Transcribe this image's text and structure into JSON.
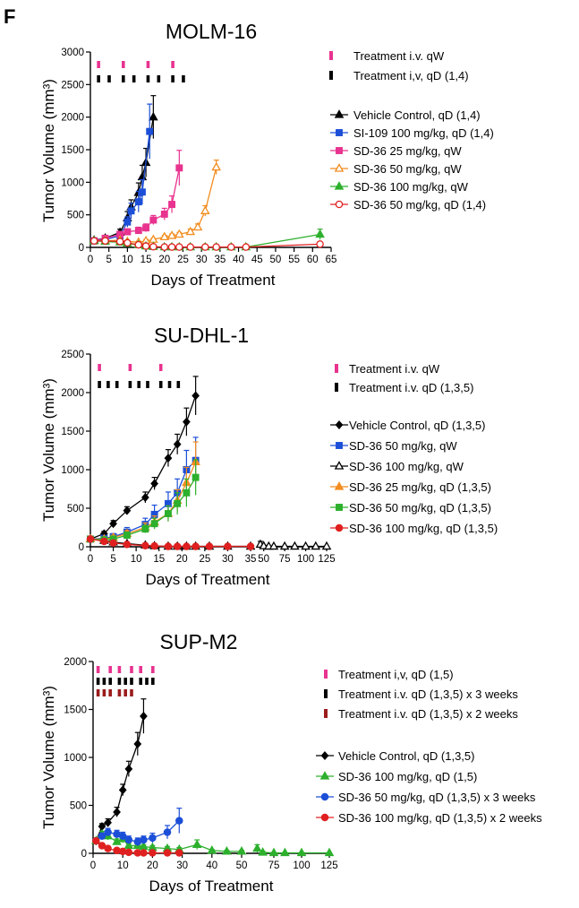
{
  "panel_letter": "F",
  "chart_data": [
    {
      "type": "line",
      "title": "MOLM-16",
      "xlabel": "Days of Treatment",
      "ylabel": "Tumor Volume (mm³)",
      "xlim": [
        0,
        65
      ],
      "ylim": [
        0,
        3000
      ],
      "x_ticks": [
        "0",
        "5",
        "10",
        "15",
        "20",
        "25",
        "30",
        "35",
        "40",
        "45",
        "50",
        "55",
        "60",
        "65"
      ],
      "y_ticks": [
        "0",
        "500",
        "1000",
        "1500",
        "2000",
        "2500",
        "3000"
      ],
      "treatments": [
        {
          "label": "Treatment i.v. qW",
          "color": "#e8338f",
          "days": [
            1,
            8,
            15,
            22
          ]
        },
        {
          "label": "Treatment i,v, qD (1,4)",
          "color": "#000000",
          "days": [
            1,
            4,
            8,
            11,
            15,
            18,
            22,
            25
          ]
        }
      ],
      "series": [
        {
          "name": "Vehicle Control, qD (1,4)",
          "color": "#000000",
          "marker": "triangle",
          "fill": "filled",
          "x": [
            1,
            4,
            8,
            10,
            11,
            13,
            14,
            15,
            17
          ],
          "y": [
            110,
            140,
            230,
            450,
            620,
            840,
            1080,
            1300,
            2000
          ],
          "err": [
            20,
            30,
            50,
            100,
            110,
            150,
            180,
            220,
            330
          ]
        },
        {
          "name": "SI-109 100 mg/kg, qD (1,4)",
          "color": "#1c4fd8",
          "marker": "square",
          "fill": "filled",
          "x": [
            1,
            4,
            8,
            10,
            11,
            13,
            14,
            16
          ],
          "y": [
            100,
            120,
            180,
            390,
            560,
            700,
            850,
            1780
          ],
          "err": [
            20,
            30,
            40,
            80,
            120,
            160,
            190,
            420
          ]
        },
        {
          "name": "SD-36 25 mg/kg, qW",
          "color": "#e8338f",
          "marker": "square",
          "fill": "filled",
          "x": [
            1,
            4,
            8,
            10,
            13,
            15,
            17,
            20,
            22,
            24
          ],
          "y": [
            100,
            140,
            200,
            240,
            260,
            300,
            420,
            510,
            660,
            1220
          ],
          "err": [
            20,
            20,
            30,
            40,
            50,
            60,
            70,
            90,
            130,
            270
          ]
        },
        {
          "name": "SD-36 50 mg/kg, qW",
          "color": "#f28c1f",
          "marker": "triangle",
          "fill": "open",
          "x": [
            1,
            4,
            8,
            10,
            13,
            15,
            17,
            20,
            22,
            24,
            27,
            29,
            31,
            34
          ],
          "y": [
            100,
            100,
            110,
            90,
            80,
            100,
            120,
            160,
            180,
            200,
            240,
            310,
            560,
            1230
          ],
          "err": [
            15,
            15,
            15,
            15,
            15,
            20,
            20,
            25,
            25,
            30,
            40,
            50,
            80,
            110
          ]
        },
        {
          "name": "SD-36 100 mg/kg, qW",
          "color": "#2db02d",
          "marker": "triangle",
          "fill": "filled",
          "x": [
            1,
            4,
            8,
            10,
            13,
            15,
            17,
            20,
            22,
            24,
            27,
            31,
            34,
            38,
            42,
            62
          ],
          "y": [
            100,
            90,
            80,
            60,
            40,
            20,
            10,
            5,
            5,
            5,
            5,
            5,
            5,
            5,
            5,
            200
          ],
          "err": [
            15,
            15,
            15,
            10,
            10,
            5,
            5,
            0,
            0,
            0,
            0,
            0,
            0,
            0,
            0,
            80
          ]
        },
        {
          "name": "SD-36 50 mg/kg, qD (1,4)",
          "color": "#e02020",
          "marker": "circle",
          "fill": "open",
          "x": [
            1,
            4,
            8,
            10,
            13,
            15,
            17,
            20,
            22,
            24,
            27,
            31,
            34,
            38,
            42,
            62
          ],
          "y": [
            100,
            100,
            90,
            70,
            40,
            20,
            10,
            5,
            5,
            5,
            5,
            5,
            5,
            5,
            5,
            50
          ],
          "err": [
            15,
            15,
            15,
            10,
            10,
            5,
            5,
            0,
            0,
            0,
            0,
            0,
            0,
            0,
            0,
            10
          ]
        }
      ]
    },
    {
      "type": "line",
      "title": "SU-DHL-1",
      "xlabel": "Days of Treatment",
      "ylabel": "Tumor Volume (mm³)",
      "xlim": [
        0,
        125
      ],
      "axis_break": [
        35,
        45
      ],
      "ylim": [
        0,
        2500
      ],
      "x_ticks": [
        "0",
        "5",
        "10",
        "15",
        "20",
        "25",
        "30",
        "35",
        "50",
        "75",
        "100",
        "125"
      ],
      "y_ticks": [
        "0",
        "500",
        "1000",
        "1500",
        "2000",
        "2500"
      ],
      "treatments": [
        {
          "label": "Treatment i.v. qW",
          "color": "#e8338f",
          "days": [
            1,
            8,
            15
          ]
        },
        {
          "label": "Treatment i.v. qD (1,3,5)",
          "color": "#000000",
          "days": [
            1,
            3,
            5,
            8,
            10,
            12,
            15,
            17,
            19
          ]
        }
      ],
      "series": [
        {
          "name": "Vehicle Control, qD (1,3,5)",
          "color": "#000000",
          "marker": "diamond",
          "fill": "filled",
          "x": [
            0,
            3,
            5,
            8,
            12,
            14,
            17,
            19,
            21,
            23
          ],
          "y": [
            100,
            170,
            300,
            470,
            640,
            820,
            1150,
            1330,
            1620,
            1960
          ],
          "err": [
            20,
            30,
            40,
            50,
            70,
            80,
            110,
            130,
            180,
            250
          ]
        },
        {
          "name": "SD-36 50 mg/kg, qW",
          "color": "#1c4fd8",
          "marker": "square",
          "fill": "filled",
          "x": [
            0,
            3,
            5,
            8,
            12,
            14,
            17,
            19,
            21,
            23
          ],
          "y": [
            100,
            110,
            130,
            190,
            290,
            420,
            560,
            700,
            1000,
            1120
          ],
          "err": [
            20,
            30,
            40,
            60,
            80,
            120,
            150,
            180,
            250,
            300
          ]
        },
        {
          "name": "SD-36 100 mg/kg, qW",
          "color": "#000000",
          "marker": "triangle",
          "fill": "open",
          "x": [
            0,
            3,
            5,
            8,
            12,
            14,
            17,
            19,
            21,
            23,
            26,
            30,
            35,
            46,
            50,
            56,
            62,
            75,
            87,
            100,
            112,
            125
          ],
          "y": [
            100,
            80,
            60,
            40,
            20,
            10,
            5,
            5,
            5,
            5,
            5,
            5,
            5,
            30,
            10,
            5,
            5,
            5,
            5,
            5,
            5,
            5
          ],
          "err": [
            15,
            15,
            10,
            10,
            5,
            5,
            0,
            0,
            0,
            0,
            0,
            0,
            0,
            40,
            10,
            0,
            0,
            0,
            0,
            0,
            0,
            0
          ]
        },
        {
          "name": "SD-36 25 mg/kg, qD (1,3,5)",
          "color": "#f28c1f",
          "marker": "triangle",
          "fill": "filled",
          "x": [
            0,
            3,
            5,
            8,
            12,
            14,
            17,
            19,
            21,
            23
          ],
          "y": [
            100,
            100,
            120,
            170,
            250,
            320,
            430,
            600,
            830,
            1100
          ],
          "err": [
            20,
            20,
            30,
            40,
            60,
            80,
            100,
            140,
            200,
            260
          ]
        },
        {
          "name": "SD-36 50 mg/kg, qD (1,3,5)",
          "color": "#2db02d",
          "marker": "square",
          "fill": "filled",
          "x": [
            0,
            3,
            5,
            8,
            12,
            14,
            17,
            19,
            21,
            23
          ],
          "y": [
            100,
            90,
            100,
            150,
            230,
            300,
            430,
            560,
            700,
            900
          ],
          "err": [
            20,
            20,
            30,
            40,
            50,
            70,
            100,
            140,
            180,
            230
          ]
        },
        {
          "name": "SD-36 100 mg/kg, qD (1,3,5)",
          "color": "#e02020",
          "marker": "circle",
          "fill": "filled",
          "x": [
            0,
            3,
            5,
            8,
            12,
            14,
            17,
            19,
            21,
            23,
            26,
            30,
            35
          ],
          "y": [
            100,
            70,
            50,
            30,
            15,
            10,
            5,
            5,
            5,
            5,
            5,
            5,
            5
          ],
          "err": [
            15,
            10,
            10,
            5,
            5,
            0,
            0,
            0,
            0,
            0,
            0,
            0,
            0
          ]
        }
      ]
    },
    {
      "type": "line",
      "title": "SUP-M2",
      "xlabel": "Days of Treatment",
      "ylabel": "Tumor Volume (mm³)",
      "xlim": [
        0,
        125
      ],
      "axis_break": [
        50,
        50
      ],
      "ylim": [
        0,
        2000
      ],
      "x_ticks": [
        "0",
        "10",
        "20",
        "30",
        "40",
        "50",
        "75",
        "100",
        "125"
      ],
      "y_ticks": [
        "0",
        "500",
        "1000",
        "1500",
        "2000"
      ],
      "treatments": [
        {
          "label": "Treatment i,v, qD (1,5)",
          "color": "#e8338f",
          "days": [
            1,
            5,
            8,
            12,
            15,
            19
          ]
        },
        {
          "label": "Treatment i.v. qD (1,3,5) x 3 weeks",
          "color": "#000000",
          "days": [
            1,
            3,
            5,
            8,
            10,
            12,
            15,
            17,
            19
          ]
        },
        {
          "label": "Treatment i.v. qD (1,3,5) x 2 weeks",
          "color": "#9b1c1c",
          "days": [
            1,
            3,
            5,
            8,
            10,
            12
          ]
        }
      ],
      "series": [
        {
          "name": "Vehicle Control, qD (1,3,5)",
          "color": "#000000",
          "marker": "diamond",
          "fill": "filled",
          "x": [
            1,
            3,
            5,
            8,
            10,
            12,
            15,
            17
          ],
          "y": [
            130,
            280,
            320,
            430,
            660,
            880,
            1140,
            1430
          ],
          "err": [
            20,
            30,
            40,
            50,
            60,
            80,
            120,
            180
          ]
        },
        {
          "name": "SD-36 100 mg/kg, qD (1,5)",
          "color": "#2db02d",
          "marker": "triangle",
          "fill": "filled",
          "x": [
            1,
            3,
            5,
            8,
            10,
            12,
            15,
            17,
            20,
            25,
            29,
            35,
            40,
            45,
            50,
            60,
            65,
            75,
            85,
            100,
            125
          ],
          "y": [
            130,
            200,
            180,
            120,
            150,
            80,
            80,
            70,
            60,
            50,
            40,
            90,
            30,
            20,
            20,
            50,
            10,
            5,
            5,
            5,
            5
          ],
          "err": [
            20,
            30,
            40,
            30,
            40,
            20,
            20,
            20,
            20,
            20,
            20,
            50,
            10,
            10,
            10,
            40,
            10,
            0,
            0,
            0,
            0
          ]
        },
        {
          "name": "SD-36 50 mg/kg, qD (1,3,5) x 3 weeks",
          "color": "#1c4fd8",
          "marker": "circle",
          "fill": "filled",
          "x": [
            1,
            3,
            5,
            8,
            10,
            12,
            15,
            17,
            20,
            25,
            29
          ],
          "y": [
            130,
            180,
            220,
            200,
            180,
            140,
            120,
            140,
            160,
            220,
            340
          ],
          "err": [
            20,
            30,
            40,
            40,
            40,
            40,
            40,
            40,
            50,
            70,
            130
          ]
        },
        {
          "name": "SD-36 100 mg/kg, qD (1,3,5) x 2 weeks",
          "color": "#e02020",
          "marker": "circle",
          "fill": "filled",
          "x": [
            1,
            3,
            5,
            8,
            10,
            12,
            15,
            17,
            20,
            25,
            29
          ],
          "y": [
            130,
            80,
            50,
            30,
            20,
            10,
            5,
            5,
            5,
            5,
            5
          ],
          "err": [
            20,
            15,
            10,
            5,
            5,
            0,
            0,
            0,
            0,
            0,
            0
          ]
        }
      ]
    }
  ]
}
